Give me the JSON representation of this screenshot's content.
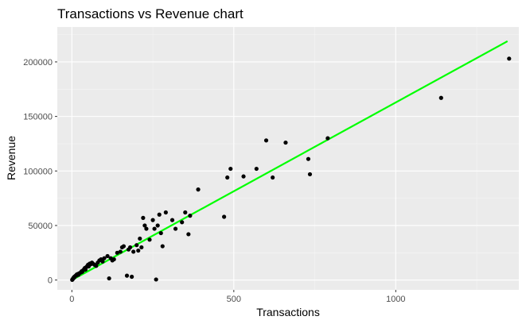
{
  "chart_data": {
    "type": "scatter",
    "title": "Transactions vs Revenue chart",
    "xlabel": "Transactions",
    "ylabel": "Revenue",
    "xlim": [
      -45,
      1380
    ],
    "ylim": [
      -9000,
      232000
    ],
    "x_ticks": [
      0,
      500,
      1000
    ],
    "x_tick_labels": [
      "0",
      "500",
      "1000"
    ],
    "y_ticks": [
      0,
      50000,
      100000,
      150000,
      200000
    ],
    "y_tick_labels": [
      "0",
      "50000",
      "100000",
      "150000",
      "200000"
    ],
    "grid": true,
    "legend": "none",
    "colors": {
      "panel_background": "#EBEBEB",
      "grid_major": "#FFFFFF",
      "grid_minor": "#F5F5F5",
      "points": "#000000",
      "trend_line": "#00FF00"
    },
    "series": [
      {
        "kind": "points",
        "points": [
          [
            1,
            200
          ],
          [
            2,
            600
          ],
          [
            3,
            1000
          ],
          [
            4,
            1500
          ],
          [
            5,
            1800
          ],
          [
            6,
            2500
          ],
          [
            7,
            2200
          ],
          [
            8,
            3000
          ],
          [
            10,
            3500
          ],
          [
            12,
            4000
          ],
          [
            14,
            4200
          ],
          [
            15,
            5000
          ],
          [
            18,
            5500
          ],
          [
            20,
            4800
          ],
          [
            22,
            6000
          ],
          [
            25,
            6500
          ],
          [
            28,
            7000
          ],
          [
            30,
            8000
          ],
          [
            32,
            7500
          ],
          [
            35,
            9000
          ],
          [
            38,
            10000
          ],
          [
            40,
            11000
          ],
          [
            42,
            9500
          ],
          [
            45,
            12000
          ],
          [
            48,
            13000
          ],
          [
            50,
            14000
          ],
          [
            52,
            12500
          ],
          [
            55,
            15000
          ],
          [
            58,
            14500
          ],
          [
            60,
            15500
          ],
          [
            62,
            16000
          ],
          [
            65,
            15000
          ],
          [
            70,
            14000
          ],
          [
            75,
            13000
          ],
          [
            80,
            16000
          ],
          [
            85,
            18000
          ],
          [
            90,
            19000
          ],
          [
            95,
            17000
          ],
          [
            100,
            20000
          ],
          [
            110,
            22000
          ],
          [
            115,
            1500
          ],
          [
            120,
            20000
          ],
          [
            125,
            18000
          ],
          [
            130,
            19000
          ],
          [
            140,
            25000
          ],
          [
            150,
            26000
          ],
          [
            155,
            30000
          ],
          [
            160,
            31000
          ],
          [
            170,
            4000
          ],
          [
            175,
            28000
          ],
          [
            180,
            30000
          ],
          [
            185,
            3000
          ],
          [
            190,
            26000
          ],
          [
            200,
            32000
          ],
          [
            205,
            27000
          ],
          [
            210,
            38000
          ],
          [
            215,
            30000
          ],
          [
            220,
            57000
          ],
          [
            225,
            50000
          ],
          [
            230,
            47000
          ],
          [
            240,
            37000
          ],
          [
            250,
            55000
          ],
          [
            255,
            47000
          ],
          [
            260,
            500
          ],
          [
            265,
            50000
          ],
          [
            270,
            60000
          ],
          [
            275,
            43000
          ],
          [
            280,
            31000
          ],
          [
            290,
            62000
          ],
          [
            310,
            55000
          ],
          [
            320,
            47000
          ],
          [
            340,
            53000
          ],
          [
            350,
            62000
          ],
          [
            360,
            42000
          ],
          [
            365,
            59000
          ],
          [
            390,
            83000
          ],
          [
            470,
            58000
          ],
          [
            480,
            94000
          ],
          [
            490,
            102000
          ],
          [
            530,
            95000
          ],
          [
            570,
            102000
          ],
          [
            600,
            128000
          ],
          [
            620,
            94000
          ],
          [
            660,
            126000
          ],
          [
            730,
            111000
          ],
          [
            735,
            97000
          ],
          [
            790,
            130000
          ],
          [
            1140,
            167000
          ],
          [
            1350,
            203000
          ]
        ]
      },
      {
        "kind": "trend_line",
        "points": [
          [
            0,
            0
          ],
          [
            1345,
            219000
          ]
        ]
      }
    ]
  }
}
